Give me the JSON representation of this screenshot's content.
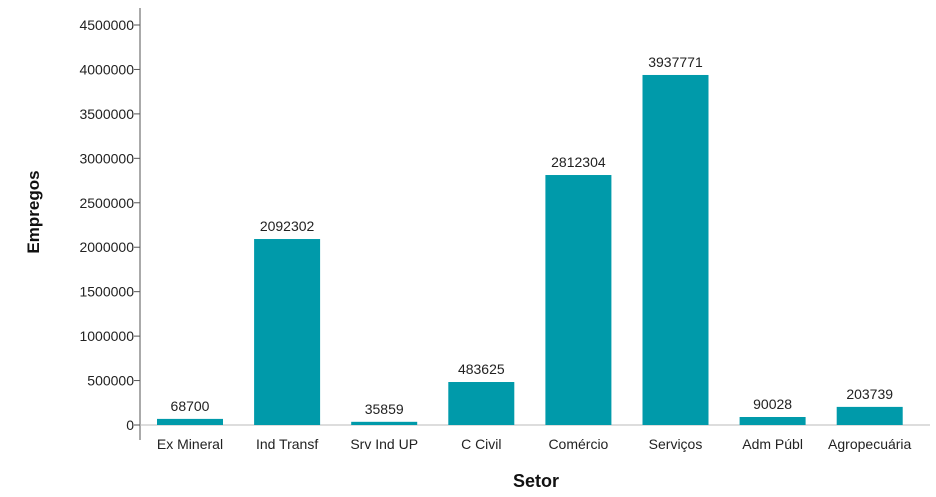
{
  "chart_data": {
    "type": "bar",
    "xlabel": "Setor",
    "ylabel": "Empregos",
    "categories": [
      "Ex Mineral",
      "Ind Transf",
      "Srv Ind UP",
      "C Civil",
      "Comércio",
      "Serviços",
      "Adm Públ",
      "Agropecuária"
    ],
    "values": [
      68700,
      2092302,
      35859,
      483625,
      2812304,
      3937771,
      90028,
      203739
    ],
    "data_labels": [
      "68700",
      "2092302",
      "35859",
      "483625",
      "2812304",
      "3937771",
      "90028",
      "203739"
    ],
    "ylim": [
      0,
      4500000
    ],
    "yticks": [
      0,
      500000,
      1000000,
      1500000,
      2000000,
      2500000,
      3000000,
      3500000,
      4000000,
      4500000
    ],
    "ytick_labels": [
      "0",
      "500000",
      "1000000",
      "1500000",
      "2000000",
      "2500000",
      "3000000",
      "3500000",
      "4000000",
      "4500000"
    ],
    "bar_color": "#009aaa",
    "grid": false,
    "legend": "none"
  }
}
